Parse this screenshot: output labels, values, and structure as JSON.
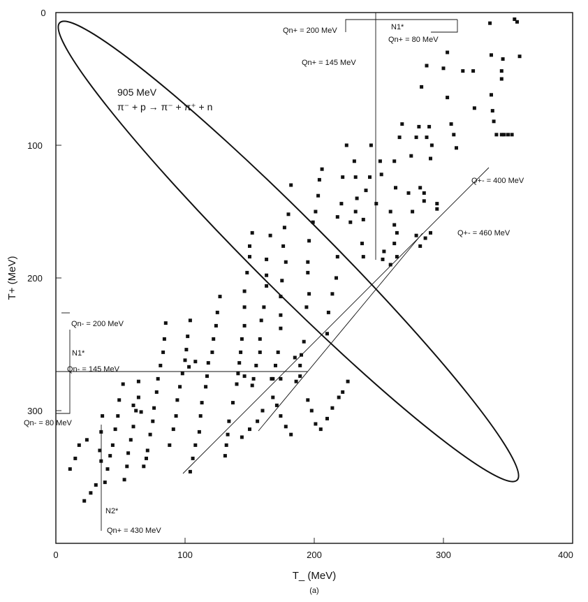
{
  "chart_data": {
    "type": "scatter",
    "title": "",
    "xlabel": "T_ (MeV)",
    "ylabel": "T+ (MeV)",
    "caption": "(a)",
    "xlim": [
      0,
      400
    ],
    "ylim": [
      0,
      400
    ],
    "y_inverted": true,
    "x_ticks": [
      "0",
      "100",
      "200",
      "300",
      "400"
    ],
    "y_ticks": [
      "0",
      "100",
      "200",
      "300"
    ],
    "reaction": {
      "energy": "905 MeV",
      "equation": "π⁻ + p → π⁻ + π⁺ + n"
    },
    "annotations": {
      "qn_plus_200": "Qn+ = 200 MeV",
      "qn_plus_145": "Qn+ = 145 MeV",
      "qn_plus_80": "Qn+ = 80 MeV",
      "n1_star_top": "N1*",
      "qpm_400": "Q+- = 400 MeV",
      "qpm_460": "Q+- = 460 MeV",
      "qn_minus_200": "Qn- = 200 MeV",
      "n1_star_left": "N1*",
      "qn_minus_145": "Qn- = 145 MeV",
      "qn_minus_80": "Qn- = 80 MeV",
      "n2_star": "N2*",
      "qn_plus_430": "Qn+ = 430 MeV"
    },
    "boundary": {
      "center": [
        180,
        180
      ],
      "semi_major": 247,
      "semi_minor": 28,
      "angle_deg": 45
    },
    "series": [
      {
        "points": [
          [
            355,
            5
          ],
          [
            357,
            7
          ],
          [
            359,
            33
          ],
          [
            346,
            35
          ],
          [
            336,
            8
          ],
          [
            337,
            32
          ],
          [
            337,
            62
          ],
          [
            338,
            74
          ],
          [
            339,
            82
          ],
          [
            345,
            44
          ],
          [
            345,
            50
          ],
          [
            341,
            92
          ],
          [
            345,
            92
          ],
          [
            347,
            92
          ],
          [
            350,
            92
          ],
          [
            353,
            92
          ],
          [
            315,
            44
          ],
          [
            323,
            44
          ],
          [
            324,
            72
          ],
          [
            303,
            30
          ],
          [
            300,
            42
          ],
          [
            303,
            64
          ],
          [
            306,
            84
          ],
          [
            308,
            92
          ],
          [
            310,
            102
          ],
          [
            287,
            40
          ],
          [
            289,
            86
          ],
          [
            287,
            94
          ],
          [
            291,
            100
          ],
          [
            290,
            110
          ],
          [
            295,
            144
          ],
          [
            295,
            148
          ],
          [
            283,
            56
          ],
          [
            281,
            86
          ],
          [
            279,
            94
          ],
          [
            275,
            108
          ],
          [
            273,
            136
          ],
          [
            282,
            132
          ],
          [
            285,
            136
          ],
          [
            285,
            142
          ],
          [
            276,
            150
          ],
          [
            279,
            168
          ],
          [
            286,
            170
          ],
          [
            282,
            176
          ],
          [
            290,
            166
          ],
          [
            268,
            84
          ],
          [
            266,
            94
          ],
          [
            262,
            112
          ],
          [
            263,
            132
          ],
          [
            259,
            150
          ],
          [
            262,
            160
          ],
          [
            264,
            166
          ],
          [
            262,
            174
          ],
          [
            264,
            184
          ],
          [
            259,
            190
          ],
          [
            254,
            180
          ],
          [
            253,
            186
          ],
          [
            251,
            112
          ],
          [
            252,
            122
          ],
          [
            248,
            144
          ],
          [
            244,
            100
          ],
          [
            243,
            124
          ],
          [
            240,
            134
          ],
          [
            238,
            156
          ],
          [
            237,
            174
          ],
          [
            238,
            184
          ],
          [
            231,
            112
          ],
          [
            232,
            124
          ],
          [
            233,
            140
          ],
          [
            232,
            150
          ],
          [
            228,
            158
          ],
          [
            225,
            100
          ],
          [
            222,
            124
          ],
          [
            221,
            144
          ],
          [
            218,
            154
          ],
          [
            218,
            184
          ],
          [
            217,
            200
          ],
          [
            214,
            212
          ],
          [
            211,
            226
          ],
          [
            210,
            242
          ],
          [
            206,
            118
          ],
          [
            204,
            126
          ],
          [
            203,
            138
          ],
          [
            201,
            150
          ],
          [
            199,
            158
          ],
          [
            196,
            172
          ],
          [
            195,
            188
          ],
          [
            195,
            196
          ],
          [
            196,
            212
          ],
          [
            194,
            222
          ],
          [
            192,
            248
          ],
          [
            190,
            258
          ],
          [
            185,
            260
          ],
          [
            189,
            266
          ],
          [
            189,
            274
          ],
          [
            186,
            278
          ],
          [
            182,
            130
          ],
          [
            180,
            152
          ],
          [
            177,
            162
          ],
          [
            176,
            176
          ],
          [
            178,
            188
          ],
          [
            175,
            202
          ],
          [
            174,
            214
          ],
          [
            174,
            228
          ],
          [
            174,
            238
          ],
          [
            172,
            256
          ],
          [
            170,
            266
          ],
          [
            168,
            276
          ],
          [
            166,
            168
          ],
          [
            163,
            186
          ],
          [
            163,
            198
          ],
          [
            163,
            206
          ],
          [
            161,
            222
          ],
          [
            159,
            232
          ],
          [
            158,
            246
          ],
          [
            158,
            256
          ],
          [
            155,
            266
          ],
          [
            153,
            276
          ],
          [
            152,
            166
          ],
          [
            150,
            176
          ],
          [
            150,
            184
          ],
          [
            148,
            196
          ],
          [
            146,
            210
          ],
          [
            146,
            222
          ],
          [
            146,
            236
          ],
          [
            144,
            246
          ],
          [
            143,
            256
          ],
          [
            142,
            264
          ],
          [
            141,
            272
          ],
          [
            140,
            280
          ],
          [
            137,
            294
          ],
          [
            134,
            308
          ],
          [
            133,
            318
          ],
          [
            132,
            326
          ],
          [
            131,
            334
          ],
          [
            127,
            214
          ],
          [
            125,
            226
          ],
          [
            124,
            236
          ],
          [
            122,
            246
          ],
          [
            121,
            256
          ],
          [
            118,
            264
          ],
          [
            117,
            274
          ],
          [
            116,
            282
          ],
          [
            113,
            294
          ],
          [
            112,
            304
          ],
          [
            111,
            316
          ],
          [
            108,
            326
          ],
          [
            106,
            336
          ],
          [
            104,
            346
          ],
          [
            104,
            232
          ],
          [
            102,
            244
          ],
          [
            101,
            254
          ],
          [
            100,
            262
          ],
          [
            98,
            272
          ],
          [
            96,
            282
          ],
          [
            94,
            292
          ],
          [
            93,
            304
          ],
          [
            91,
            314
          ],
          [
            88,
            326
          ],
          [
            85,
            234
          ],
          [
            84,
            246
          ],
          [
            83,
            256
          ],
          [
            81,
            266
          ],
          [
            79,
            276
          ],
          [
            78,
            286
          ],
          [
            76,
            298
          ],
          [
            75,
            308
          ],
          [
            73,
            318
          ],
          [
            71,
            330
          ],
          [
            70,
            336
          ],
          [
            68,
            342
          ],
          [
            64,
            278
          ],
          [
            64,
            290
          ],
          [
            62,
            300
          ],
          [
            60,
            312
          ],
          [
            58,
            322
          ],
          [
            56,
            332
          ],
          [
            55,
            342
          ],
          [
            53,
            352
          ],
          [
            52,
            280
          ],
          [
            49,
            292
          ],
          [
            48,
            304
          ],
          [
            46,
            314
          ],
          [
            44,
            326
          ],
          [
            42,
            334
          ],
          [
            40,
            344
          ],
          [
            38,
            354
          ],
          [
            36,
            304
          ],
          [
            35,
            316
          ],
          [
            34,
            330
          ],
          [
            35,
            338
          ],
          [
            24,
            322
          ],
          [
            18,
            326
          ],
          [
            15,
            336
          ],
          [
            11,
            344
          ],
          [
            31,
            356
          ],
          [
            27,
            362
          ],
          [
            22,
            368
          ],
          [
            195,
            292
          ],
          [
            198,
            300
          ],
          [
            201,
            310
          ],
          [
            205,
            314
          ],
          [
            210,
            306
          ],
          [
            214,
            298
          ],
          [
            219,
            290
          ],
          [
            222,
            286
          ],
          [
            226,
            278
          ],
          [
            168,
            290
          ],
          [
            171,
            296
          ],
          [
            174,
            304
          ],
          [
            178,
            312
          ],
          [
            182,
            318
          ],
          [
            160,
            300
          ],
          [
            156,
            308
          ],
          [
            150,
            314
          ],
          [
            144,
            320
          ],
          [
            167,
            276
          ],
          [
            174,
            276
          ],
          [
            103,
            267
          ],
          [
            108,
            263
          ],
          [
            146,
            274
          ],
          [
            152,
            281
          ],
          [
            60,
            296
          ],
          [
            66,
            301
          ]
        ]
      }
    ]
  }
}
